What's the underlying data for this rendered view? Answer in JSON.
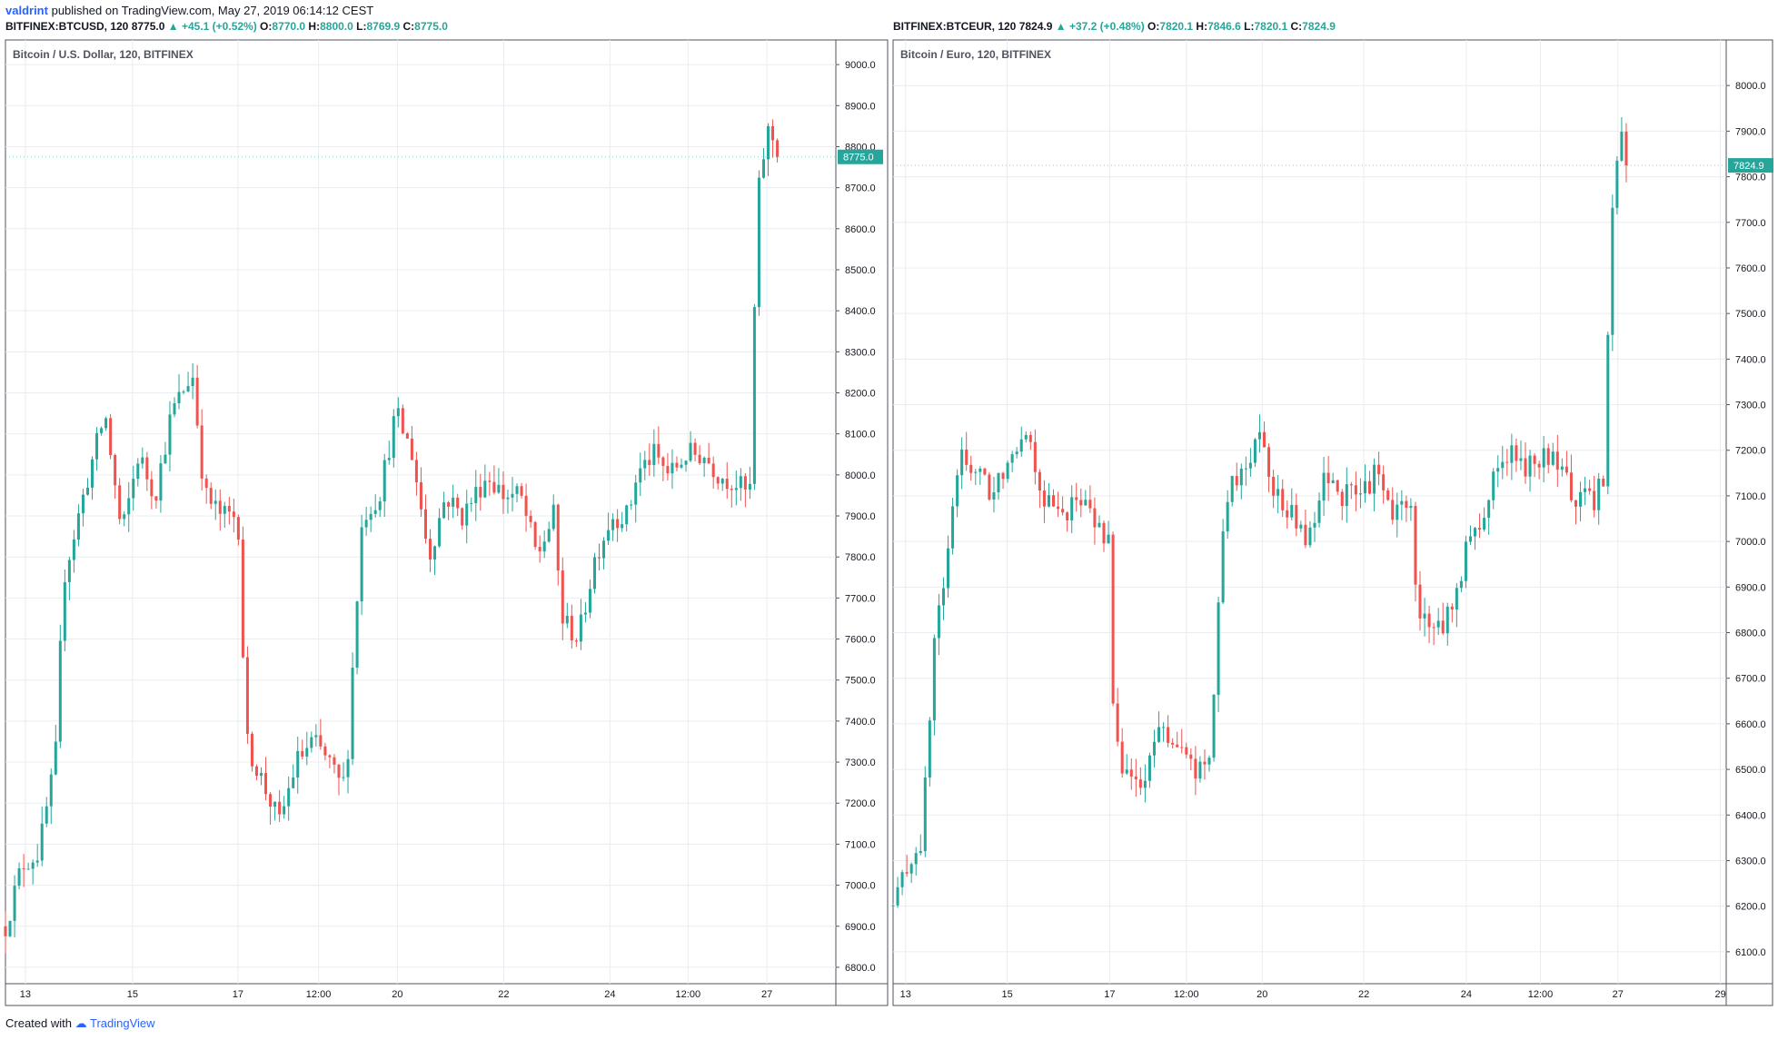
{
  "header": {
    "user": "valdrint",
    "published_text": "published on TradingView.com, May 27, 2019 06:14:12 CEST"
  },
  "footer": {
    "created_with": "Created with",
    "brand": "TradingView"
  },
  "colors": {
    "up": "#26a69a",
    "down": "#ef5350",
    "grid": "#e9ecf0",
    "border": "#50535e"
  },
  "chart_data": [
    {
      "type": "candlestick",
      "symbol_line": "BITFINEX:BTCUSD, 120",
      "last": "8775.0",
      "change": "+45.1 (+0.52%)",
      "ohlc": {
        "o": "8770.0",
        "h": "8800.0",
        "l": "8769.9",
        "c": "8775.0"
      },
      "title": "Bitcoin / U.S. Dollar, 120, BITFINEX",
      "last_label": "8775.0",
      "ylim": [
        6760,
        9060
      ],
      "yticks": [
        6800,
        6900,
        7000,
        7100,
        7200,
        7300,
        7400,
        7500,
        7600,
        7700,
        7800,
        7900,
        8000,
        8100,
        8200,
        8300,
        8400,
        8500,
        8600,
        8700,
        8800,
        8900,
        9000
      ],
      "xticks": [
        "13",
        "15",
        "17",
        "12:00",
        "20",
        "22",
        "24",
        "12:00",
        "27"
      ],
      "xtick_pos": [
        0.024,
        0.153,
        0.28,
        0.377,
        0.472,
        0.6,
        0.728,
        0.822,
        0.917
      ],
      "anchors": [
        [
          0,
          6900
        ],
        [
          0.02,
          7050
        ],
        [
          0.04,
          7080
        ],
        [
          0.06,
          7300
        ],
        [
          0.07,
          7750
        ],
        [
          0.1,
          8000
        ],
        [
          0.12,
          8150
        ],
        [
          0.14,
          7850
        ],
        [
          0.16,
          8050
        ],
        [
          0.18,
          7950
        ],
        [
          0.2,
          8150
        ],
        [
          0.225,
          8250
        ],
        [
          0.24,
          7950
        ],
        [
          0.26,
          7900
        ],
        [
          0.28,
          7900
        ],
        [
          0.29,
          7350
        ],
        [
          0.31,
          7250
        ],
        [
          0.33,
          7150
        ],
        [
          0.35,
          7300
        ],
        [
          0.37,
          7350
        ],
        [
          0.39,
          7300
        ],
        [
          0.4,
          7250
        ],
        [
          0.41,
          7250
        ],
        [
          0.42,
          7600
        ],
        [
          0.43,
          7900
        ],
        [
          0.45,
          7950
        ],
        [
          0.47,
          8150
        ],
        [
          0.49,
          8050
        ],
        [
          0.51,
          7800
        ],
        [
          0.53,
          7950
        ],
        [
          0.55,
          7900
        ],
        [
          0.58,
          8000
        ],
        [
          0.6,
          7950
        ],
        [
          0.62,
          7950
        ],
        [
          0.64,
          7800
        ],
        [
          0.66,
          7900
        ],
        [
          0.67,
          7650
        ],
        [
          0.69,
          7600
        ],
        [
          0.71,
          7800
        ],
        [
          0.73,
          7900
        ],
        [
          0.75,
          7900
        ],
        [
          0.76,
          8000
        ],
        [
          0.78,
          8050
        ],
        [
          0.8,
          8000
        ],
        [
          0.82,
          8050
        ],
        [
          0.84,
          8050
        ],
        [
          0.86,
          8000
        ],
        [
          0.88,
          7980
        ],
        [
          0.895,
          7950
        ],
        [
          0.9,
          8000
        ],
        [
          0.903,
          8600
        ],
        [
          0.91,
          8750
        ],
        [
          0.92,
          8850
        ],
        [
          0.93,
          8775
        ]
      ]
    },
    {
      "type": "candlestick",
      "symbol_line": "BITFINEX:BTCEUR, 120",
      "last": "7824.9",
      "change": "+37.2 (+0.48%)",
      "ohlc": {
        "o": "7820.1",
        "h": "7846.6",
        "l": "7820.1",
        "c": "7824.9"
      },
      "title": "Bitcoin / Euro, 120, BITFINEX",
      "last_label": "7824.9",
      "ylim": [
        6030,
        8100
      ],
      "yticks": [
        6100,
        6200,
        6300,
        6400,
        6500,
        6600,
        6700,
        6800,
        6900,
        7000,
        7100,
        7200,
        7300,
        7400,
        7500,
        7600,
        7700,
        7800,
        7900,
        8000
      ],
      "xticks": [
        "13",
        "15",
        "17",
        "12:00",
        "20",
        "22",
        "24",
        "12:00",
        "27",
        "29"
      ],
      "xtick_pos": [
        0.015,
        0.137,
        0.26,
        0.352,
        0.443,
        0.565,
        0.688,
        0.777,
        0.87,
        0.993
      ],
      "anchors": [
        [
          0,
          6200
        ],
        [
          0.02,
          6300
        ],
        [
          0.035,
          6350
        ],
        [
          0.05,
          6800
        ],
        [
          0.065,
          6950
        ],
        [
          0.08,
          7200
        ],
        [
          0.1,
          7150
        ],
        [
          0.12,
          7100
        ],
        [
          0.14,
          7200
        ],
        [
          0.16,
          7250
        ],
        [
          0.18,
          7100
        ],
        [
          0.2,
          7050
        ],
        [
          0.22,
          7100
        ],
        [
          0.24,
          7050
        ],
        [
          0.26,
          7000
        ],
        [
          0.265,
          6550
        ],
        [
          0.28,
          6500
        ],
        [
          0.3,
          6450
        ],
        [
          0.32,
          6600
        ],
        [
          0.34,
          6550
        ],
        [
          0.36,
          6500
        ],
        [
          0.38,
          6500
        ],
        [
          0.39,
          6850
        ],
        [
          0.4,
          7100
        ],
        [
          0.42,
          7150
        ],
        [
          0.44,
          7250
        ],
        [
          0.46,
          7100
        ],
        [
          0.48,
          7050
        ],
        [
          0.5,
          7000
        ],
        [
          0.52,
          7150
        ],
        [
          0.54,
          7100
        ],
        [
          0.56,
          7100
        ],
        [
          0.58,
          7150
        ],
        [
          0.6,
          7050
        ],
        [
          0.62,
          7100
        ],
        [
          0.63,
          6850
        ],
        [
          0.65,
          6800
        ],
        [
          0.67,
          6850
        ],
        [
          0.69,
          7000
        ],
        [
          0.71,
          7050
        ],
        [
          0.72,
          7150
        ],
        [
          0.74,
          7200
        ],
        [
          0.76,
          7150
        ],
        [
          0.78,
          7200
        ],
        [
          0.8,
          7150
        ],
        [
          0.82,
          7100
        ],
        [
          0.84,
          7080
        ],
        [
          0.855,
          7150
        ],
        [
          0.86,
          7700
        ],
        [
          0.87,
          7850
        ],
        [
          0.875,
          7900
        ],
        [
          0.88,
          7825
        ]
      ]
    }
  ]
}
